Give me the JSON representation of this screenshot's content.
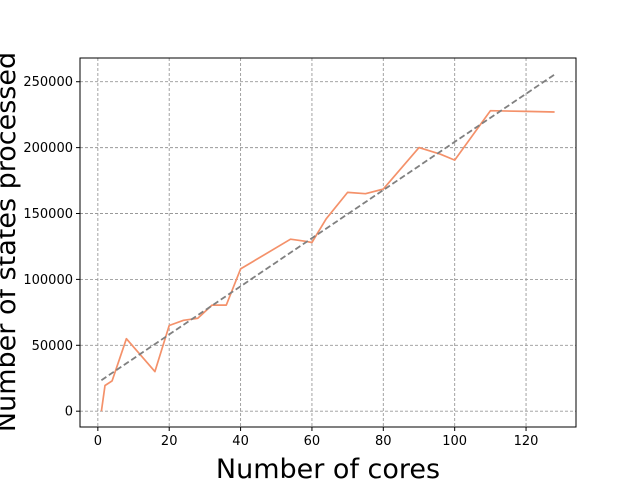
{
  "chart_data": {
    "type": "line",
    "title": "",
    "xlabel": "Number of cores",
    "ylabel": "Number of states processed",
    "xlim": [
      -5,
      134
    ],
    "ylim": [
      -12000,
      268000
    ],
    "xticks": [
      0,
      20,
      40,
      60,
      80,
      100,
      120
    ],
    "yticks": [
      0,
      50000,
      100000,
      150000,
      200000,
      250000
    ],
    "grid": true,
    "legend": "none",
    "colors": {
      "measured": "#f4916a",
      "fit": "#808080",
      "grid": "#999999"
    },
    "series": [
      {
        "style": "solid",
        "x": [
          1,
          2,
          4,
          8,
          16,
          20,
          24,
          28,
          32,
          36,
          40,
          54,
          58,
          60,
          64,
          70,
          75,
          80,
          90,
          96,
          100,
          110,
          120,
          128
        ],
        "y": [
          0,
          19500,
          23000,
          55000,
          30000,
          65000,
          69000,
          70500,
          80500,
          80500,
          108000,
          130500,
          129000,
          128000,
          146000,
          166000,
          165000,
          168500,
          200000,
          195000,
          190500,
          228000,
          227500,
          227000
        ]
      },
      {
        "style": "dashed",
        "x": [
          1,
          128
        ],
        "y": [
          23500,
          255500
        ]
      }
    ]
  }
}
